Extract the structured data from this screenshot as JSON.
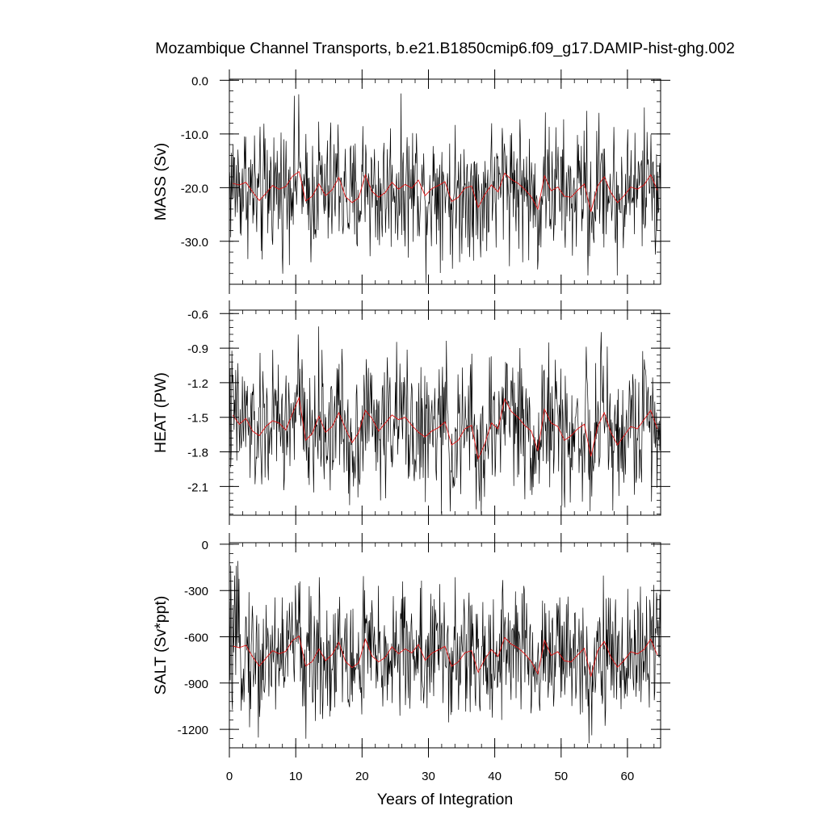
{
  "chart_data": {
    "type": "line",
    "title": "Mozambique Channel Transports, b.e21.B1850cmip6.f09_g17.DAMIP-hist-ghg.002",
    "xlabel": "Years of Integration",
    "xlim": [
      0,
      65
    ],
    "xticks": [
      0,
      10,
      20,
      30,
      40,
      50,
      60
    ],
    "xtick_labels": [
      "0",
      "10",
      "20",
      "30",
      "40",
      "50",
      "60"
    ],
    "colors": {
      "monthly": "#000000",
      "annual_mean": "#e01010"
    },
    "panels": [
      {
        "ylabel": "MASS (Sv)",
        "ylim": [
          -38,
          0.2
        ],
        "yticks": [
          0,
          -10,
          -20,
          -30
        ],
        "ytick_labels": [
          "0.0",
          "-10.0",
          "-20.0",
          "-30.0"
        ],
        "annual_mean": [
          -19.2,
          -19.5,
          -19.0,
          -20.8,
          -22.4,
          -21.1,
          -19.6,
          -20.3,
          -19.8,
          -17.9,
          -17.0,
          -22.5,
          -21.6,
          -19.3,
          -21.5,
          -20.4,
          -18.1,
          -21.7,
          -22.8,
          -21.9,
          -17.6,
          -20.7,
          -21.8,
          -20.9,
          -19.0,
          -20.3,
          -19.4,
          -20.1,
          -18.6,
          -21.5,
          -20.2,
          -19.6,
          -18.9,
          -22.6,
          -21.8,
          -20.1,
          -19.7,
          -23.7,
          -21.3,
          -19.5,
          -20.8,
          -17.3,
          -18.5,
          -19.2,
          -20.3,
          -21.7,
          -24.0,
          -17.8,
          -20.6,
          -19.9,
          -21.6,
          -21.8,
          -20.5,
          -19.3,
          -24.5,
          -19.7,
          -18.0,
          -20.9,
          -22.8,
          -21.5,
          -19.9,
          -20.3,
          -19.5,
          -17.6,
          -20.5
        ]
      },
      {
        "ylabel": "HEAT (PW)",
        "ylim": [
          -2.35,
          -0.57
        ],
        "yticks": [
          -0.6,
          -0.9,
          -1.2,
          -1.5,
          -1.8,
          -2.1
        ],
        "ytick_labels": [
          "-0.6",
          "-0.9",
          "-1.2",
          "-1.5",
          "-1.8",
          "-2.1"
        ],
        "annual_mean": [
          -1.48,
          -1.56,
          -1.51,
          -1.62,
          -1.66,
          -1.58,
          -1.53,
          -1.55,
          -1.61,
          -1.47,
          -1.33,
          -1.7,
          -1.64,
          -1.49,
          -1.63,
          -1.58,
          -1.46,
          -1.6,
          -1.72,
          -1.63,
          -1.44,
          -1.51,
          -1.62,
          -1.55,
          -1.48,
          -1.52,
          -1.5,
          -1.57,
          -1.63,
          -1.67,
          -1.62,
          -1.59,
          -1.54,
          -1.74,
          -1.7,
          -1.6,
          -1.57,
          -1.86,
          -1.73,
          -1.55,
          -1.6,
          -1.34,
          -1.45,
          -1.5,
          -1.57,
          -1.62,
          -1.79,
          -1.43,
          -1.55,
          -1.58,
          -1.7,
          -1.66,
          -1.6,
          -1.56,
          -1.84,
          -1.58,
          -1.46,
          -1.63,
          -1.74,
          -1.66,
          -1.58,
          -1.6,
          -1.52,
          -1.44,
          -1.6
        ]
      },
      {
        "ylabel": "SALT (Sv*ppt)",
        "ylim": [
          -1320,
          10
        ],
        "yticks": [
          0,
          -300,
          -600,
          -900,
          -1200
        ],
        "ytick_labels": [
          "0",
          "-300",
          "-600",
          "-900",
          "-1200"
        ],
        "annual_mean": [
          -660,
          -670,
          -655,
          -730,
          -790,
          -740,
          -690,
          -710,
          -695,
          -625,
          -595,
          -790,
          -760,
          -678,
          -755,
          -715,
          -635,
          -760,
          -800,
          -768,
          -615,
          -725,
          -763,
          -733,
          -665,
          -710,
          -678,
          -705,
          -650,
          -753,
          -707,
          -685,
          -662,
          -791,
          -763,
          -703,
          -690,
          -830,
          -745,
          -683,
          -728,
          -605,
          -648,
          -672,
          -710,
          -760,
          -840,
          -623,
          -721,
          -697,
          -756,
          -763,
          -718,
          -675,
          -858,
          -690,
          -630,
          -731,
          -798,
          -753,
          -697,
          -711,
          -683,
          -615,
          -718
        ]
      }
    ]
  }
}
